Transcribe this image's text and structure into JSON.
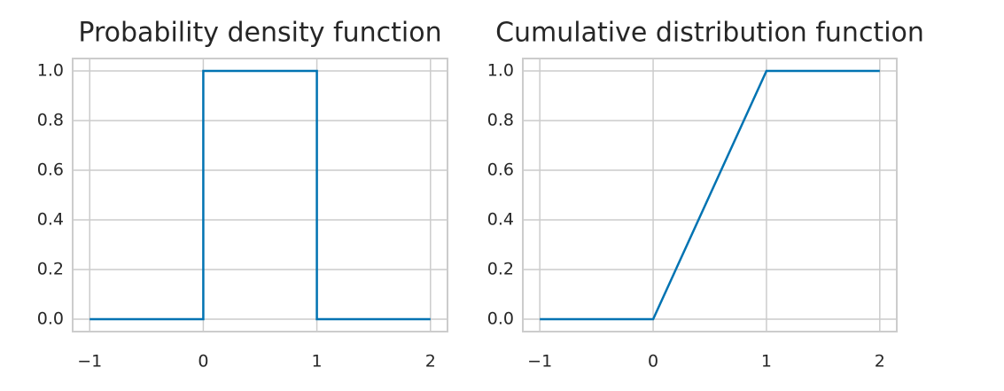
{
  "chart_data": [
    {
      "type": "line",
      "title": "Probability density function",
      "x": [
        -1,
        0,
        0,
        1,
        1,
        2
      ],
      "values": [
        0,
        0,
        1,
        1,
        0,
        0
      ],
      "color": "#0173b2",
      "xlim": [
        -1.15,
        2.15
      ],
      "ylim": [
        -0.05,
        1.05
      ],
      "xticks": [
        {
          "value": -1,
          "label": "−1"
        },
        0,
        1,
        2
      ],
      "yticks": [
        {
          "value": 0,
          "label": "0.0"
        },
        0.2,
        0.4,
        0.6,
        0.8,
        {
          "value": 1,
          "label": "1.0"
        }
      ],
      "grid": true
    },
    {
      "type": "line",
      "title": "Cumulative distribution function",
      "x": [
        -1,
        0,
        1,
        2
      ],
      "values": [
        0,
        0,
        1,
        1
      ],
      "color": "#0173b2",
      "xlim": [
        -1.15,
        2.15
      ],
      "ylim": [
        -0.05,
        1.05
      ],
      "xticks": [
        {
          "value": -1,
          "label": "−1"
        },
        0,
        1,
        2
      ],
      "yticks": [
        {
          "value": 0,
          "label": "0.0"
        },
        0.2,
        0.4,
        0.6,
        0.8,
        {
          "value": 1,
          "label": "1.0"
        }
      ],
      "grid": true
    }
  ]
}
